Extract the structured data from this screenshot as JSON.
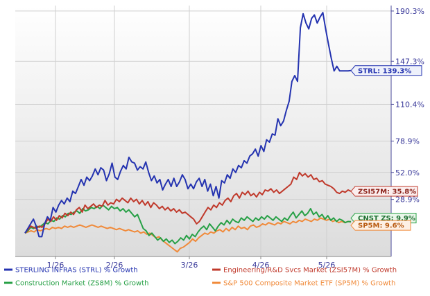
{
  "chart_data": {
    "type": "line",
    "title": "",
    "xlabel": "",
    "ylabel": "",
    "x_ticks": [
      "1/26",
      "2/26",
      "3/26",
      "4/26",
      "5/26"
    ],
    "y_ticks": [
      "190.3%",
      "147.3%",
      "110.4%",
      "78.9%",
      "52.0%",
      "28.9%"
    ],
    "ylim": [
      -20,
      195
    ],
    "grid": true,
    "legend_position": "bottom",
    "series": [
      {
        "name": "STERLING INFRAS (STRL) % Growth",
        "color": "#2433b0",
        "callout": "STRL: 139.3%",
        "values": [
          0,
          4,
          8,
          12,
          6,
          -3,
          -3,
          8,
          14,
          11,
          22,
          18,
          24,
          28,
          25,
          30,
          27,
          36,
          34,
          40,
          46,
          41,
          48,
          45,
          49,
          55,
          50,
          56,
          54,
          45,
          51,
          60,
          48,
          46,
          53,
          58,
          55,
          65,
          61,
          60,
          54,
          57,
          55,
          61,
          52,
          45,
          49,
          43,
          46,
          37,
          42,
          46,
          40,
          47,
          40,
          44,
          50,
          46,
          38,
          42,
          38,
          44,
          47,
          40,
          46,
          36,
          42,
          32,
          40,
          30,
          45,
          43,
          50,
          47,
          55,
          52,
          58,
          56,
          62,
          60,
          66,
          68,
          72,
          66,
          75,
          70,
          80,
          78,
          85,
          84,
          98,
          92,
          96,
          105,
          113,
          130,
          135,
          130,
          176,
          188,
          180,
          175,
          184,
          187,
          180,
          185,
          189,
          175,
          162,
          150,
          139,
          143,
          139,
          139,
          139,
          139,
          139.3
        ]
      },
      {
        "name": "Engineering/R&D Svcs Market (ZSI57M) % Growth",
        "color": "#c0392b",
        "callout": "ZSI57M: 35.8%",
        "values": [
          0,
          3,
          6,
          5,
          4,
          6,
          5,
          8,
          12,
          10,
          14,
          11,
          15,
          13,
          17,
          15,
          18,
          16,
          20,
          22,
          18,
          24,
          21,
          23,
          25,
          22,
          24,
          23,
          28,
          24,
          26,
          25,
          29,
          27,
          30,
          28,
          26,
          30,
          27,
          29,
          25,
          28,
          24,
          27,
          22,
          26,
          24,
          21,
          23,
          20,
          22,
          19,
          21,
          18,
          20,
          17,
          18,
          16,
          14,
          12,
          8,
          10,
          14,
          18,
          22,
          20,
          24,
          22,
          26,
          24,
          28,
          30,
          27,
          32,
          34,
          30,
          35,
          33,
          36,
          32,
          34,
          31,
          35,
          33,
          37,
          36,
          38,
          35,
          37,
          34,
          36,
          38,
          40,
          42,
          48,
          46,
          52,
          49,
          51,
          48,
          50,
          46,
          47,
          44,
          45,
          42,
          41,
          40,
          38,
          35,
          34,
          36,
          35,
          37,
          35.8
        ]
      },
      {
        "name": "Construction Market (ZS8M) % Growth",
        "color": "#27a046",
        "callout": "CNST ZS: 9.9%",
        "values": [
          0,
          2,
          5,
          4,
          6,
          5,
          7,
          9,
          8,
          11,
          10,
          13,
          12,
          15,
          14,
          17,
          16,
          18,
          19,
          17,
          21,
          19,
          20,
          22,
          21,
          23,
          21,
          24,
          22,
          20,
          23,
          21,
          22,
          19,
          21,
          18,
          20,
          17,
          14,
          16,
          10,
          4,
          2,
          -2,
          0,
          -3,
          -6,
          -4,
          -7,
          -5,
          -8,
          -6,
          -9,
          -7,
          -4,
          -6,
          -2,
          -5,
          -1,
          -3,
          1,
          4,
          6,
          3,
          8,
          5,
          2,
          6,
          9,
          7,
          11,
          8,
          12,
          10,
          9,
          13,
          11,
          14,
          12,
          10,
          13,
          11,
          14,
          12,
          15,
          13,
          11,
          14,
          12,
          10,
          13,
          11,
          15,
          18,
          13,
          16,
          19,
          15,
          17,
          21,
          16,
          18,
          14,
          16,
          12,
          15,
          11,
          13,
          10,
          12,
          11,
          9,
          10,
          9.9
        ]
      },
      {
        "name": "S&P 500 Composite Market ETF (SP5M) % Growth",
        "color": "#f08a3a",
        "callout": "SP5M: 9.6%",
        "values": [
          0,
          1,
          2,
          1,
          3,
          2,
          3,
          4,
          3,
          5,
          4,
          5,
          4,
          6,
          5,
          6,
          5,
          6,
          7,
          6,
          5,
          6,
          7,
          6,
          5,
          6,
          5,
          4,
          5,
          4,
          3,
          4,
          3,
          2,
          3,
          2,
          1,
          2,
          0,
          1,
          -1,
          0,
          -2,
          -4,
          -3,
          -6,
          -8,
          -10,
          -12,
          -14,
          -16,
          -13,
          -12,
          -10,
          -8,
          -5,
          -7,
          -4,
          -2,
          0,
          -1,
          1,
          0,
          2,
          3,
          1,
          4,
          2,
          5,
          3,
          6,
          4,
          5,
          3,
          6,
          7,
          5,
          6,
          8,
          7,
          9,
          8,
          7,
          9,
          8,
          10,
          9,
          8,
          10,
          9,
          11,
          10,
          12,
          11,
          10,
          12,
          11,
          13,
          12,
          11,
          12,
          10,
          11,
          9,
          10,
          9,
          10,
          9.6
        ]
      }
    ]
  },
  "legend": [
    {
      "label": "STERLING INFRAS (STRL) % Growth",
      "color": "#2433b0"
    },
    {
      "label": "Engineering/R&D Svcs Market (ZSI57M) % Growth",
      "color": "#c0392b"
    },
    {
      "label": "Construction Market (ZS8M) % Growth",
      "color": "#27a046"
    },
    {
      "label": "S&P 500 Composite Market ETF (SP5M) % Growth",
      "color": "#f08a3a"
    }
  ]
}
